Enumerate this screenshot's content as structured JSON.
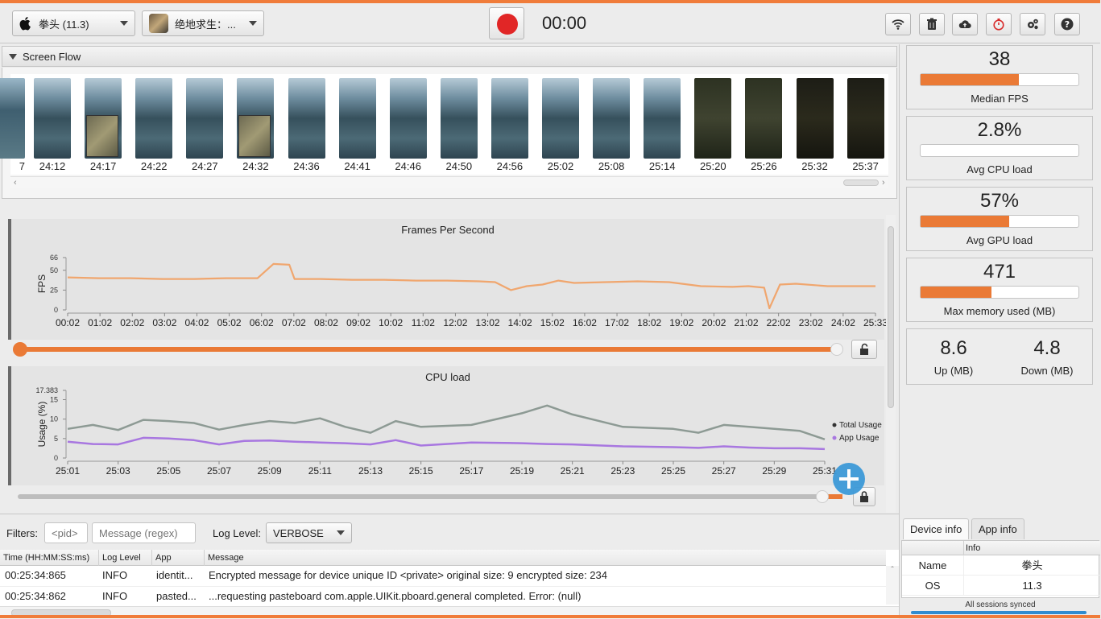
{
  "toolbar": {
    "device": "拳头 (11.3)",
    "app": "绝地求生：...",
    "timer": "00:00"
  },
  "screen_flow": {
    "title": "Screen Flow",
    "partial_label": "7",
    "thumbnails": [
      "24:12",
      "24:17",
      "24:22",
      "24:27",
      "24:32",
      "24:36",
      "24:41",
      "24:46",
      "24:50",
      "24:56",
      "25:02",
      "25:08",
      "25:14",
      "25:20",
      "25:26",
      "25:32",
      "25:37"
    ]
  },
  "fps_chart": {
    "title": "Frames Per Second",
    "ylabel": "FPS",
    "yticks": [
      "66",
      "50",
      "25",
      "0"
    ],
    "xticks": [
      "00:02",
      "01:02",
      "02:02",
      "03:02",
      "04:02",
      "05:02",
      "06:02",
      "07:02",
      "08:02",
      "09:02",
      "10:02",
      "11:02",
      "12:02",
      "13:02",
      "14:02",
      "15:02",
      "16:02",
      "17:02",
      "18:02",
      "19:02",
      "20:02",
      "21:02",
      "22:02",
      "23:02",
      "24:02",
      "25:33"
    ],
    "color": "#f0a66e"
  },
  "cpu_chart": {
    "title": "CPU load",
    "ylabel": "Usage (%)",
    "yticks": [
      "17.383",
      "15",
      "10",
      "5",
      "0"
    ],
    "xticks": [
      "25:01",
      "25:03",
      "25:05",
      "25:07",
      "25:09",
      "25:11",
      "25:13",
      "25:15",
      "25:17",
      "25:19",
      "25:21",
      "25:23",
      "25:25",
      "25:27",
      "25:29",
      "25:31"
    ],
    "legend": [
      "Total Usage",
      "App Usage"
    ],
    "total_color": "#8d9a94",
    "app_color": "#a877e0"
  },
  "chart_data": [
    {
      "type": "line",
      "title": "Frames Per Second",
      "ylabel": "FPS",
      "ylim": [
        0,
        66
      ],
      "x": [
        "00:02",
        "01:02",
        "02:02",
        "03:02",
        "04:02",
        "05:02",
        "06:02",
        "06:32",
        "07:02",
        "07:12",
        "08:02",
        "09:02",
        "10:02",
        "11:02",
        "12:02",
        "13:02",
        "13:32",
        "14:02",
        "14:32",
        "15:02",
        "15:32",
        "16:02",
        "17:02",
        "18:02",
        "19:02",
        "20:02",
        "21:02",
        "21:32",
        "22:02",
        "22:12",
        "22:32",
        "23:02",
        "24:02",
        "25:33"
      ],
      "series": [
        {
          "values": [
            41,
            40,
            40,
            39,
            39,
            40,
            40,
            58,
            57,
            39,
            39,
            38,
            38,
            37,
            37,
            36,
            35,
            25,
            30,
            32,
            37,
            34,
            35,
            36,
            35,
            30,
            29,
            30,
            28,
            2,
            32,
            33,
            30,
            30
          ]
        }
      ]
    },
    {
      "type": "line",
      "title": "CPU load",
      "ylabel": "Usage (%)",
      "ylim": [
        0,
        17.383
      ],
      "x": [
        "25:01",
        "25:02",
        "25:03",
        "25:04",
        "25:05",
        "25:06",
        "25:07",
        "25:08",
        "25:09",
        "25:10",
        "25:11",
        "25:12",
        "25:13",
        "25:14",
        "25:15",
        "25:17",
        "25:19",
        "25:20",
        "25:21",
        "25:23",
        "25:25",
        "25:26",
        "25:27",
        "25:28",
        "25:29",
        "25:30",
        "25:31"
      ],
      "series": [
        {
          "name": "Total Usage",
          "values": [
            7.5,
            8.5,
            7.2,
            9.8,
            9.5,
            9.0,
            7.3,
            8.5,
            9.5,
            9.0,
            10.2,
            8.0,
            6.5,
            9.5,
            8.0,
            8.5,
            11.5,
            13.5,
            11.2,
            8.0,
            7.5,
            6.5,
            8.5,
            8.0,
            7.5,
            7.0,
            4.8
          ]
        },
        {
          "name": "App Usage",
          "values": [
            4.2,
            3.6,
            3.5,
            5.2,
            5.0,
            4.6,
            3.5,
            4.4,
            4.5,
            4.2,
            4.0,
            3.8,
            3.5,
            4.6,
            3.2,
            4.0,
            3.8,
            3.6,
            3.5,
            3.0,
            2.8,
            2.6,
            3.0,
            2.7,
            2.5,
            2.5,
            2.3
          ]
        }
      ]
    }
  ],
  "stats": {
    "median_fps": {
      "value": "38",
      "label": "Median FPS",
      "fraction": 0.62
    },
    "avg_cpu": {
      "value": "2.8%",
      "label": "Avg CPU load",
      "fraction": 0.0
    },
    "avg_gpu": {
      "value": "57%",
      "label": "Avg GPU load",
      "fraction": 0.56
    },
    "max_mem": {
      "value": "471",
      "label": "Max memory used (MB)",
      "fraction": 0.45
    },
    "network": {
      "up_value": "8.6",
      "up_label": "Up (MB)",
      "down_value": "4.8",
      "down_label": "Down (MB)"
    }
  },
  "filters": {
    "label": "Filters:",
    "pid_placeholder": "<pid>",
    "message_placeholder": "Message (regex)",
    "level_label": "Log Level:",
    "level_value": "VERBOSE"
  },
  "log": {
    "columns": [
      "Time (HH:MM:SS:ms)",
      "Log Level",
      "App",
      "Message"
    ],
    "rows": [
      {
        "time": "00:25:34:865",
        "level": "INFO",
        "app": "identit...",
        "message": "Encrypted message for device unique ID <private>  original size: 9  encrypted size: 234"
      },
      {
        "time": "00:25:34:862",
        "level": "INFO",
        "app": "pasted...",
        "message": "...requesting pasteboard com.apple.UIKit.pboard.general completed. Error: (null)"
      }
    ]
  },
  "device_info": {
    "tabs": [
      "Device info",
      "App info"
    ],
    "header": "Info",
    "rows": [
      {
        "key": "Name",
        "value": "拳头"
      },
      {
        "key": "OS",
        "value": "11.3"
      }
    ],
    "status": "All sessions synced"
  }
}
